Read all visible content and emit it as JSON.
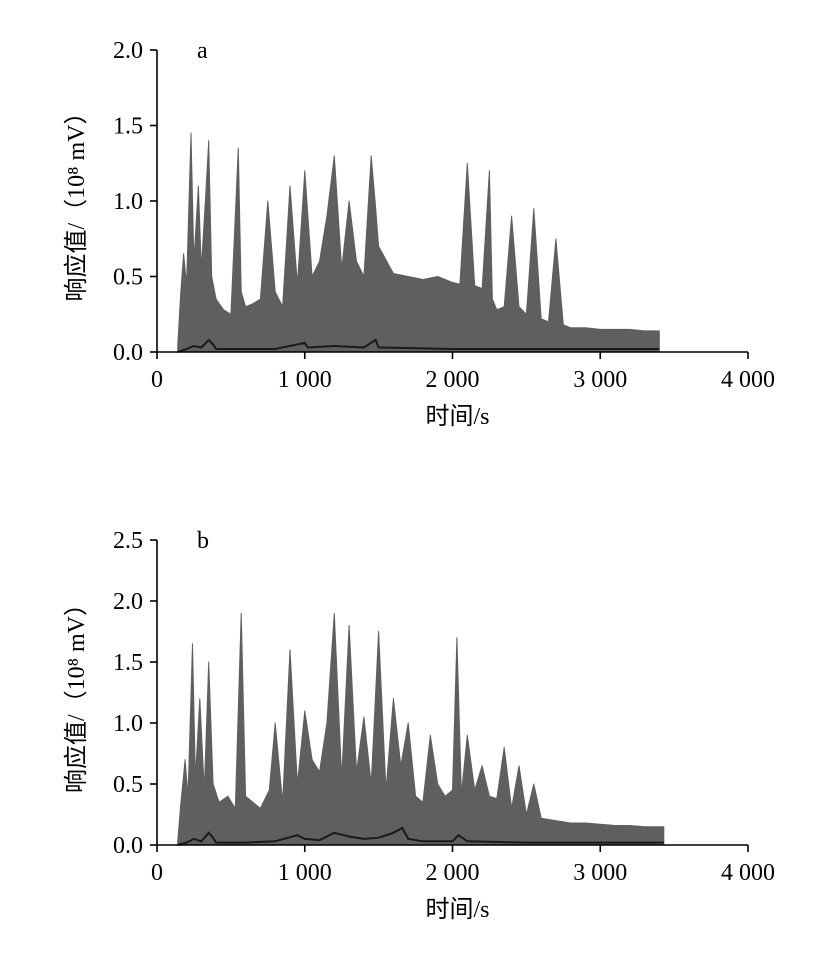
{
  "chart_data": [
    {
      "type": "line",
      "panel_label": "a",
      "xlabel": "时间/s",
      "ylabel": "响应值/（10⁸ mV）",
      "xlim": [
        0,
        4000
      ],
      "ylim": [
        0,
        2.0
      ],
      "xticks": [
        0,
        1000,
        2000,
        3000,
        4000
      ],
      "xtick_labels": [
        "0",
        "1 000",
        "2 000",
        "3 000",
        "4 000"
      ],
      "yticks": [
        0.0,
        0.5,
        1.0,
        1.5,
        2.0
      ],
      "ytick_labels": [
        "0.0",
        "0.5",
        "1.0",
        "1.5",
        "2.0"
      ],
      "grid": false,
      "series": [
        {
          "color": "#5f5f5f",
          "x": [
            140,
            160,
            180,
            200,
            230,
            250,
            280,
            300,
            330,
            350,
            370,
            400,
            450,
            500,
            550,
            570,
            600,
            650,
            700,
            750,
            800,
            850,
            900,
            950,
            1000,
            1050,
            1100,
            1150,
            1200,
            1250,
            1300,
            1350,
            1400,
            1450,
            1480,
            1500,
            1600,
            1700,
            1800,
            1900,
            2000,
            2050,
            2100,
            2150,
            2200,
            2250,
            2270,
            2300,
            2350,
            2400,
            2450,
            2500,
            2550,
            2600,
            2650,
            2700,
            2750,
            2800,
            2900,
            3000,
            3100,
            3200,
            3300,
            3400
          ],
          "y": [
            0.04,
            0.38,
            0.65,
            0.45,
            1.45,
            0.6,
            1.1,
            0.55,
            1.05,
            1.4,
            0.5,
            0.35,
            0.28,
            0.25,
            1.35,
            0.4,
            0.3,
            0.32,
            0.35,
            1.0,
            0.4,
            0.3,
            1.1,
            0.45,
            1.2,
            0.5,
            0.6,
            0.9,
            1.3,
            0.55,
            1.0,
            0.6,
            0.5,
            1.3,
            0.95,
            0.7,
            0.52,
            0.5,
            0.48,
            0.5,
            0.46,
            0.45,
            1.25,
            0.44,
            0.42,
            1.2,
            0.35,
            0.28,
            0.3,
            0.9,
            0.3,
            0.25,
            0.95,
            0.22,
            0.2,
            0.75,
            0.18,
            0.16,
            0.16,
            0.15,
            0.15,
            0.15,
            0.14,
            0.14
          ]
        },
        {
          "color": "#1a1a1a",
          "x": [
            140,
            200,
            250,
            300,
            350,
            380,
            400,
            500,
            600,
            800,
            1000,
            1020,
            1200,
            1400,
            1480,
            1500,
            2000,
            2500,
            3000,
            3400
          ],
          "y": [
            0.0,
            0.02,
            0.04,
            0.03,
            0.08,
            0.05,
            0.02,
            0.02,
            0.02,
            0.02,
            0.06,
            0.03,
            0.04,
            0.03,
            0.08,
            0.03,
            0.02,
            0.02,
            0.02,
            0.02
          ]
        }
      ]
    },
    {
      "type": "line",
      "panel_label": "b",
      "xlabel": "时间/s",
      "ylabel": "响应值/（10⁸ mV）",
      "xlim": [
        0,
        4000
      ],
      "ylim": [
        0,
        2.5
      ],
      "xticks": [
        0,
        1000,
        2000,
        3000,
        4000
      ],
      "xtick_labels": [
        "0",
        "1 000",
        "2 000",
        "3 000",
        "4 000"
      ],
      "yticks": [
        0.0,
        0.5,
        1.0,
        1.5,
        2.0,
        2.5
      ],
      "ytick_labels": [
        "0.0",
        "0.5",
        "1.0",
        "1.5",
        "2.0",
        "2.5"
      ],
      "grid": false,
      "series": [
        {
          "color": "#5f5f5f",
          "x": [
            140,
            160,
            190,
            210,
            240,
            260,
            290,
            320,
            350,
            380,
            420,
            480,
            530,
            570,
            600,
            650,
            700,
            760,
            800,
            850,
            900,
            950,
            1000,
            1050,
            1100,
            1150,
            1200,
            1250,
            1300,
            1350,
            1400,
            1450,
            1500,
            1550,
            1600,
            1650,
            1700,
            1750,
            1800,
            1850,
            1900,
            1950,
            2000,
            2030,
            2060,
            2100,
            2150,
            2200,
            2250,
            2300,
            2350,
            2400,
            2450,
            2500,
            2550,
            2600,
            2700,
            2800,
            2900,
            3000,
            3100,
            3200,
            3300,
            3430
          ],
          "y": [
            0.03,
            0.32,
            0.7,
            0.4,
            1.65,
            0.55,
            1.2,
            0.45,
            1.5,
            0.5,
            0.35,
            0.4,
            0.3,
            1.9,
            0.4,
            0.35,
            0.3,
            0.45,
            1.0,
            0.35,
            1.6,
            0.5,
            1.1,
            0.7,
            0.6,
            1.0,
            1.9,
            0.55,
            1.8,
            0.6,
            1.05,
            0.5,
            1.75,
            0.45,
            1.2,
            0.65,
            1.0,
            0.4,
            0.35,
            0.9,
            0.5,
            0.4,
            0.45,
            1.7,
            0.42,
            0.9,
            0.45,
            0.65,
            0.4,
            0.38,
            0.8,
            0.3,
            0.65,
            0.25,
            0.5,
            0.22,
            0.2,
            0.18,
            0.18,
            0.17,
            0.16,
            0.16,
            0.15,
            0.15
          ]
        },
        {
          "color": "#1a1a1a",
          "x": [
            140,
            200,
            250,
            300,
            350,
            380,
            400,
            500,
            600,
            800,
            950,
            1000,
            1100,
            1200,
            1300,
            1400,
            1500,
            1600,
            1660,
            1700,
            1800,
            2000,
            2040,
            2100,
            2500,
            3000,
            3430
          ],
          "y": [
            0.0,
            0.02,
            0.05,
            0.03,
            0.1,
            0.06,
            0.02,
            0.02,
            0.02,
            0.03,
            0.08,
            0.05,
            0.04,
            0.1,
            0.07,
            0.05,
            0.06,
            0.1,
            0.14,
            0.05,
            0.03,
            0.03,
            0.08,
            0.03,
            0.02,
            0.02,
            0.02
          ]
        }
      ]
    }
  ]
}
